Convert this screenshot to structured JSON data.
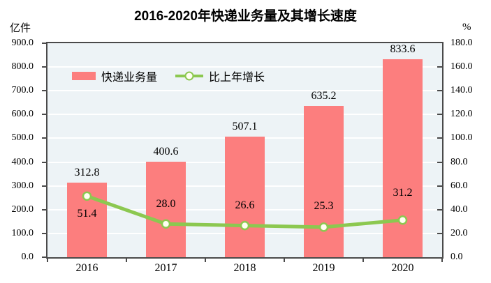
{
  "chart_data": {
    "type": "combo-bar-line",
    "title": "2016-2020年快递业务量及其增长速度",
    "categories": [
      "2016",
      "2017",
      "2018",
      "2019",
      "2020"
    ],
    "series": [
      {
        "name": "快递业务量",
        "type": "bar",
        "axis": "left",
        "values": [
          312.8,
          400.6,
          507.1,
          635.2,
          833.6
        ]
      },
      {
        "name": "比上年增长",
        "type": "line",
        "axis": "right",
        "values": [
          51.4,
          28.0,
          26.6,
          25.3,
          31.2
        ]
      }
    ],
    "left_axis": {
      "label": "亿件",
      "min": 0,
      "max": 900,
      "step": 100,
      "tick_format": "one-decimal"
    },
    "right_axis": {
      "label": "%",
      "min": 0,
      "max": 180,
      "step": 20,
      "tick_format": "one-decimal"
    },
    "grid": true,
    "legend_position": "inside-top-left"
  },
  "colors": {
    "bar": "#FC7E7E",
    "line": "#8CC850",
    "marker_fill": "#FFFFF2",
    "plot_bg": "#EDF3F6",
    "gridline": "#FFFFFF",
    "axis": "#4A4A4A",
    "text": "#000000"
  }
}
